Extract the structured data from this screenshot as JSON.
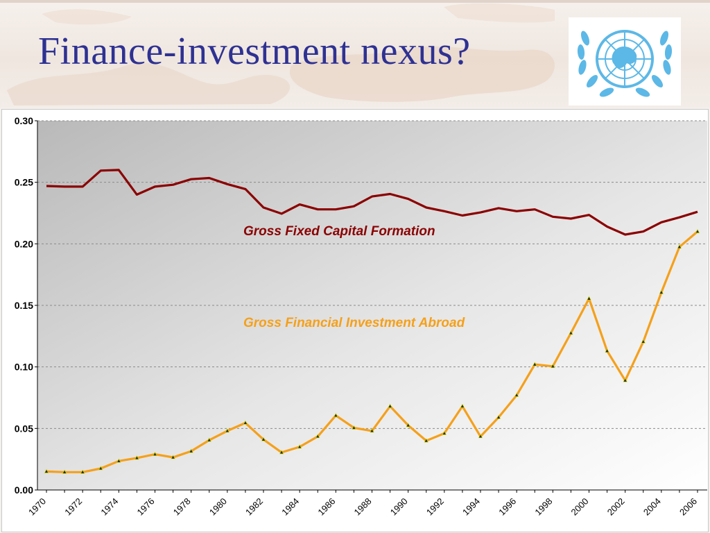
{
  "slide": {
    "title": "Finance-investment nexus?"
  },
  "logo": {
    "icon": "un-emblem-icon",
    "color": "#5cb8e6"
  },
  "chart_data": {
    "type": "line",
    "title": "",
    "xlabel": "",
    "ylabel": "",
    "ylim": [
      0,
      0.3
    ],
    "y_ticks": [
      "0.30",
      "0.25",
      "0.20",
      "0.15",
      "0.10",
      "0.05",
      "0.00"
    ],
    "x_tick_labels": [
      "1970",
      "1972",
      "1974",
      "1976",
      "1978",
      "1980",
      "1982",
      "1984",
      "1986",
      "1988",
      "1990",
      "1992",
      "1994",
      "1996",
      "1998",
      "2000",
      "2002",
      "2004",
      "2006"
    ],
    "x": [
      1970,
      1971,
      1972,
      1973,
      1974,
      1975,
      1976,
      1977,
      1978,
      1979,
      1980,
      1981,
      1982,
      1983,
      1984,
      1985,
      1986,
      1987,
      1988,
      1989,
      1990,
      1991,
      1992,
      1993,
      1994,
      1995,
      1996,
      1997,
      1998,
      1999,
      2000,
      2001,
      2002,
      2003,
      2004,
      2005,
      2006
    ],
    "grid": true,
    "series": [
      {
        "name": "Gross Fixed Capital Formation",
        "color": "#8b0000",
        "marker": "none",
        "values": [
          0.247,
          0.2465,
          0.2465,
          0.2595,
          0.26,
          0.24,
          0.2465,
          0.248,
          0.2525,
          0.2535,
          0.2485,
          0.2445,
          0.2295,
          0.2245,
          0.232,
          0.228,
          0.228,
          0.2305,
          0.2385,
          0.2405,
          0.2365,
          0.2295,
          0.2265,
          0.223,
          0.2255,
          0.229,
          0.2265,
          0.228,
          0.222,
          0.2205,
          0.2235,
          0.214,
          0.2075,
          0.21,
          0.2175,
          0.2215,
          0.226
        ]
      },
      {
        "name": "Gross Financial Investment Abroad",
        "color": "#f5a01a",
        "marker": "triangle",
        "values": [
          0.015,
          0.0145,
          0.0145,
          0.0175,
          0.0235,
          0.026,
          0.029,
          0.0265,
          0.0315,
          0.0405,
          0.048,
          0.0545,
          0.041,
          0.0305,
          0.035,
          0.0435,
          0.0605,
          0.0505,
          0.048,
          0.068,
          0.0525,
          0.04,
          0.046,
          0.068,
          0.0435,
          0.059,
          0.077,
          0.102,
          0.1005,
          0.1275,
          0.1555,
          0.113,
          0.089,
          0.1205,
          0.1605,
          0.1975,
          0.21
        ]
      }
    ]
  }
}
